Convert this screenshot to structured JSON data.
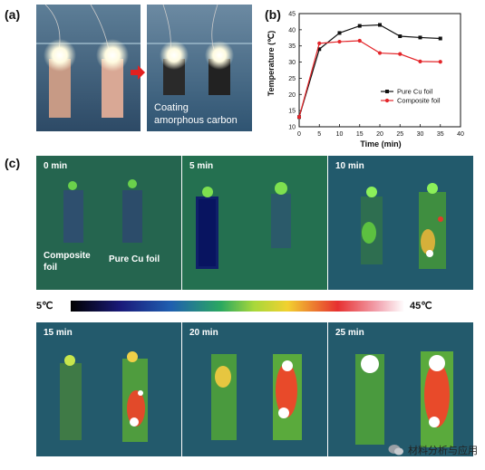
{
  "panels": {
    "a": "(a)",
    "b": "(b)",
    "c": "(c)"
  },
  "photo": {
    "caption_line1": "Coating",
    "caption_line2": "amorphous carbon"
  },
  "chart_data": {
    "type": "line",
    "xlabel": "Time (min)",
    "ylabel": "Temperature (℃)",
    "xlim": [
      0,
      40
    ],
    "ylim": [
      10,
      45
    ],
    "xticks": [
      0,
      5,
      10,
      15,
      20,
      25,
      30,
      35,
      40
    ],
    "yticks": [
      10,
      15,
      20,
      25,
      30,
      35,
      40,
      45
    ],
    "legend_position": "center-right",
    "series": [
      {
        "name": "Pure Cu foil",
        "color": "#111111",
        "marker": "square",
        "x": [
          0,
          5,
          10,
          15,
          20,
          25,
          30,
          35
        ],
        "y": [
          13,
          34,
          39,
          41.2,
          41.5,
          38,
          37.6,
          37.3
        ]
      },
      {
        "name": "Composite foil",
        "color": "#e3262a",
        "marker": "circle",
        "x": [
          0,
          5,
          10,
          15,
          20,
          25,
          30,
          35
        ],
        "y": [
          13,
          35.8,
          36.3,
          36.6,
          32.8,
          32.5,
          30.2,
          30.1
        ]
      }
    ]
  },
  "thermal": {
    "frames": [
      {
        "time": "0 min",
        "sub1": "Composite",
        "sub2": "foil",
        "sub3": "Pure Cu foil"
      },
      {
        "time": "5 min"
      },
      {
        "time": "10 min"
      },
      {
        "time": "15 min"
      },
      {
        "time": "20 min"
      },
      {
        "time": "25 min"
      }
    ]
  },
  "colorbar": {
    "min_label": "5℃",
    "max_label": "45℃"
  },
  "watermark": {
    "text": "材料分析与应用"
  }
}
